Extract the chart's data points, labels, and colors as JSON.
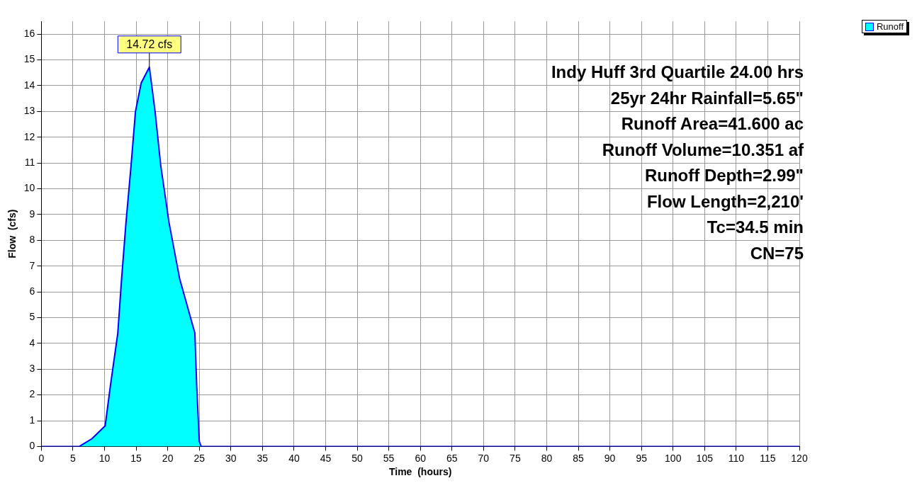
{
  "chart_data": {
    "type": "area",
    "xlabel": "Time  (hours)",
    "ylabel": "Flow  (cfs)",
    "x": [
      0,
      5,
      6,
      8,
      10.1,
      10.9,
      12.1,
      12.7,
      13.4,
      14.2,
      14.9,
      15.8,
      17.1,
      18,
      18.9,
      20.2,
      21.9,
      24.3,
      24.6,
      25,
      25.3,
      30,
      60,
      90,
      120
    ],
    "series": [
      {
        "name": "Runoff",
        "color": "#00ffff",
        "values": [
          0,
          0,
          0,
          0.3,
          0.8,
          2.3,
          4.4,
          6.5,
          8.7,
          10.9,
          13,
          14.1,
          14.72,
          13,
          10.9,
          8.7,
          6.5,
          4.4,
          2.3,
          0.2,
          0,
          0,
          0,
          0,
          0
        ]
      }
    ],
    "xlim": [
      0,
      120
    ],
    "ylim": [
      0,
      16.5
    ],
    "xticks": [
      0,
      5,
      10,
      15,
      20,
      25,
      30,
      35,
      40,
      45,
      50,
      55,
      60,
      65,
      70,
      75,
      80,
      85,
      90,
      95,
      100,
      105,
      110,
      115,
      120
    ],
    "yticks": [
      0,
      1,
      2,
      3,
      4,
      5,
      6,
      7,
      8,
      9,
      10,
      11,
      12,
      13,
      14,
      15,
      16
    ],
    "grid": true,
    "legend": "top right",
    "marker": "none",
    "annotations": [
      {
        "text": "14.72 cfs",
        "x": 17.1,
        "y": 14.72
      },
      "Indy Huff 3rd Quartile 24.00 hrs",
      "25yr 24hr Rainfall=5.65\"",
      "Runoff Area=41.600 ac",
      "Runoff Volume=10.351 af",
      "Runoff Depth=2.99\"",
      "Flow Length=2,210'",
      "Tc=34.5 min",
      "CN=75"
    ]
  }
}
